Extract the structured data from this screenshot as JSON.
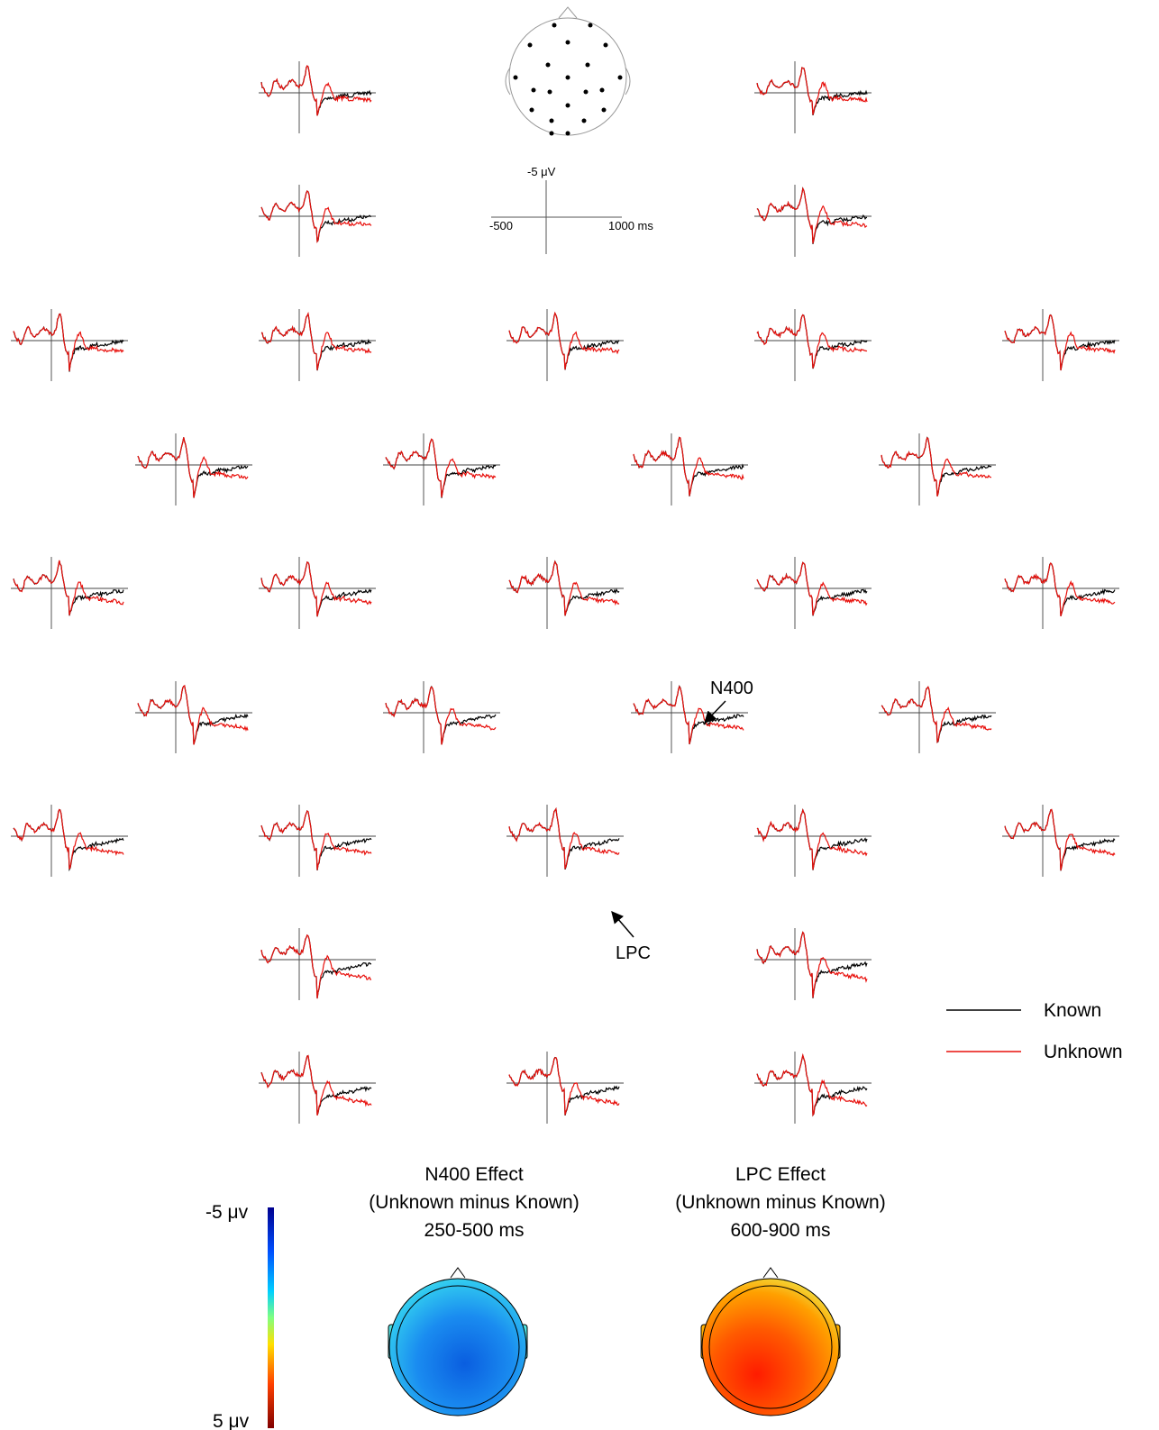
{
  "scale": {
    "y_label": "-5 μV",
    "x_start": "-500",
    "x_end": "1000 ms"
  },
  "annotations": {
    "n400": "N400",
    "lpc": "LPC"
  },
  "legend": [
    {
      "name": "Known",
      "color": "#000000"
    },
    {
      "name": "Unknown",
      "color": "#e8100c"
    }
  ],
  "topomaps": [
    {
      "title_lines": [
        "N400 Effect",
        "(Unknown minus Known)",
        "250-500 ms"
      ]
    },
    {
      "title_lines": [
        "LPC Effect",
        "(Unknown minus Known)",
        "600-900 ms"
      ]
    }
  ],
  "colorbar": {
    "top": "-5 μv",
    "bottom": "5 μv"
  }
}
